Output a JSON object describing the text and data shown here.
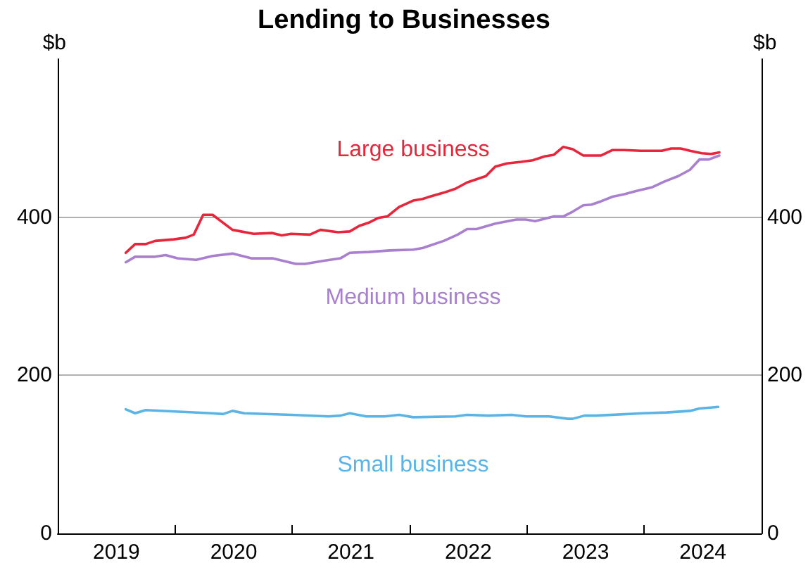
{
  "chart_data": {
    "type": "line",
    "title": "Lending to Businesses",
    "ylabel": "$b",
    "y2label": "$b",
    "xlim": [
      2019,
      2025
    ],
    "xticks": [
      {
        "value": 2020,
        "label": null
      },
      {
        "value": 2021,
        "label": null
      },
      {
        "value": 2022,
        "label": null
      },
      {
        "value": 2023,
        "label": null
      },
      {
        "value": 2024,
        "label": null
      },
      {
        "value": 2019.5,
        "label": "2019"
      },
      {
        "value": 2020.5,
        "label": "2020"
      },
      {
        "value": 2021.5,
        "label": "2021"
      },
      {
        "value": 2022.5,
        "label": "2022"
      },
      {
        "value": 2023.5,
        "label": "2023"
      },
      {
        "value": 2024.5,
        "label": "2024"
      }
    ],
    "ylim": [
      0,
      600
    ],
    "yticks": [
      0,
      200,
      400
    ],
    "y2lim": [
      0,
      600
    ],
    "y2ticks": [
      0,
      200,
      400
    ],
    "grid": "y",
    "legend": false,
    "marker": "none",
    "line_style": "solid",
    "series": [
      {
        "name": "Large business",
        "color": "#e8253a",
        "x": [
          2019.58,
          2019.66,
          2019.75,
          2019.83,
          2019.99,
          2020.09,
          2020.16,
          2020.24,
          2020.32,
          2020.49,
          2020.67,
          2020.83,
          2020.91,
          2020.99,
          2021.15,
          2021.24,
          2021.39,
          2021.49,
          2021.57,
          2021.65,
          2021.73,
          2021.81,
          2021.91,
          2022.03,
          2022.11,
          2022.15,
          2022.29,
          2022.39,
          2022.49,
          2022.57,
          2022.65,
          2022.73,
          2022.83,
          2022.95,
          2023.05,
          2023.15,
          2023.23,
          2023.31,
          2023.39,
          2023.48,
          2023.63,
          2023.73,
          2023.83,
          2023.97,
          2024.15,
          2024.23,
          2024.31,
          2024.39,
          2024.49,
          2024.57,
          2024.64
        ],
        "values": [
          355,
          366,
          366,
          370,
          372,
          374,
          378,
          403,
          403,
          384,
          379,
          380,
          377,
          379,
          378,
          384,
          381,
          382,
          389,
          393,
          399,
          401,
          413,
          421,
          423,
          425,
          431,
          436,
          444,
          448,
          452,
          464,
          468,
          470,
          472,
          477,
          479,
          489,
          486,
          478,
          478,
          485,
          485,
          484,
          484,
          487,
          487,
          484,
          481,
          480,
          482
        ]
      },
      {
        "name": "Medium business",
        "color": "#a97fd0",
        "x": [
          2019.58,
          2019.66,
          2019.83,
          2019.92,
          2020.02,
          2020.18,
          2020.32,
          2020.49,
          2020.65,
          2020.83,
          2021.03,
          2021.11,
          2021.27,
          2021.41,
          2021.49,
          2021.65,
          2021.83,
          2022.03,
          2022.11,
          2022.15,
          2022.29,
          2022.41,
          2022.49,
          2022.57,
          2022.73,
          2022.91,
          2022.99,
          2023.07,
          2023.23,
          2023.31,
          2023.39,
          2023.48,
          2023.55,
          2023.63,
          2023.73,
          2023.83,
          2023.93,
          2024.07,
          2024.17,
          2024.29,
          2024.39,
          2024.47,
          2024.55,
          2024.64
        ],
        "values": [
          343,
          350,
          350,
          352,
          348,
          346,
          351,
          354,
          348,
          348,
          341,
          341,
          345,
          348,
          355,
          356,
          358,
          359,
          361,
          363,
          370,
          378,
          385,
          385,
          392,
          397,
          397,
          395,
          401,
          401,
          407,
          415,
          416,
          420,
          426,
          429,
          433,
          438,
          445,
          452,
          460,
          473,
          473,
          478
        ]
      },
      {
        "name": "Small business",
        "color": "#5ab4e5",
        "x": [
          2019.58,
          2019.66,
          2019.75,
          2020.03,
          2020.31,
          2020.41,
          2020.49,
          2020.59,
          2020.99,
          2021.31,
          2021.41,
          2021.49,
          2021.63,
          2021.79,
          2021.91,
          2022.03,
          2022.39,
          2022.49,
          2022.67,
          2022.87,
          2022.99,
          2023.19,
          2023.35,
          2023.39,
          2023.49,
          2023.59,
          2023.99,
          2024.19,
          2024.39,
          2024.47,
          2024.63
        ],
        "values": [
          157,
          152,
          156,
          154,
          152,
          151,
          155,
          152,
          150,
          148,
          149,
          152,
          148,
          148,
          150,
          147,
          148,
          150,
          149,
          150,
          148,
          148,
          145,
          145,
          149,
          149,
          152,
          153,
          155,
          158,
          160
        ]
      }
    ]
  }
}
